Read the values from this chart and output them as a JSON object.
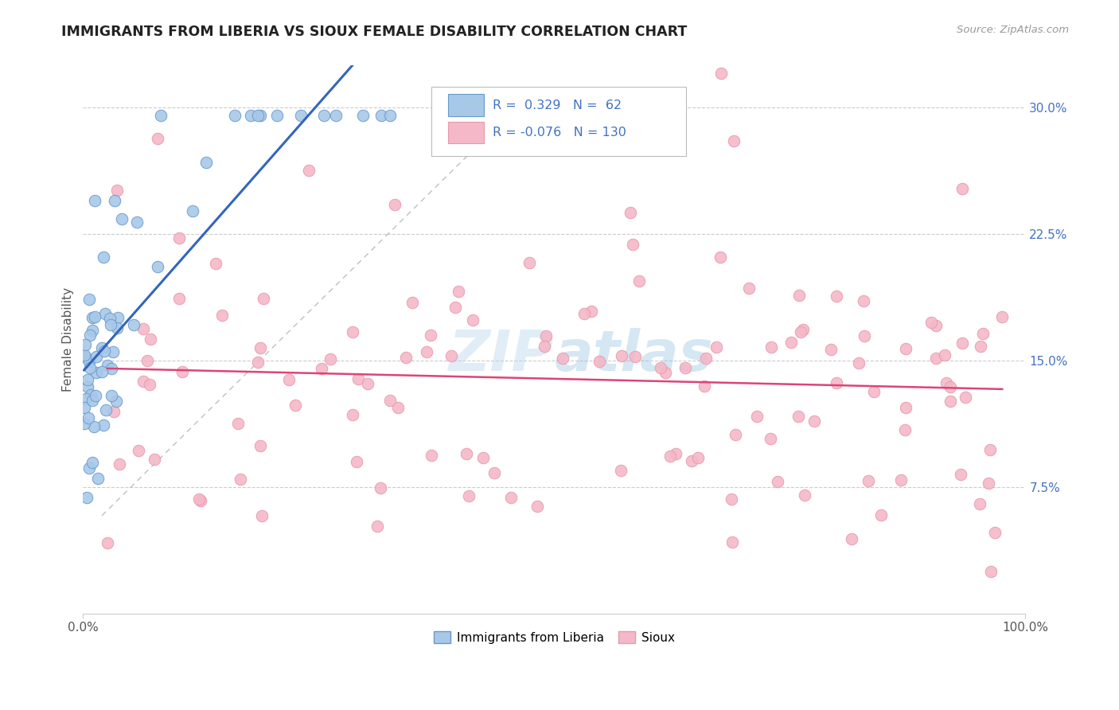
{
  "title": "IMMIGRANTS FROM LIBERIA VS SIOUX FEMALE DISABILITY CORRELATION CHART",
  "source": "Source: ZipAtlas.com",
  "ylabel": "Female Disability",
  "xlim": [
    0.0,
    1.0
  ],
  "ylim": [
    0.0,
    0.325
  ],
  "ytick_labels": [
    "7.5%",
    "15.0%",
    "22.5%",
    "30.0%"
  ],
  "ytick_positions": [
    0.075,
    0.15,
    0.225,
    0.3
  ],
  "grid_color": "#cccccc",
  "background_color": "#ffffff",
  "liberia_color": "#a8c8e8",
  "sioux_color": "#f4b8c8",
  "liberia_edge": "#6699cc",
  "sioux_edge": "#e899aa",
  "liberia_line_color": "#3366bb",
  "sioux_line_color": "#dd4477",
  "R_liberia": 0.329,
  "N_liberia": 62,
  "R_sioux": -0.076,
  "N_sioux": 130,
  "legend_label_liberia": "Immigrants from Liberia",
  "legend_label_sioux": "Sioux",
  "tick_color": "#4472c4",
  "ylabel_color": "#555555"
}
